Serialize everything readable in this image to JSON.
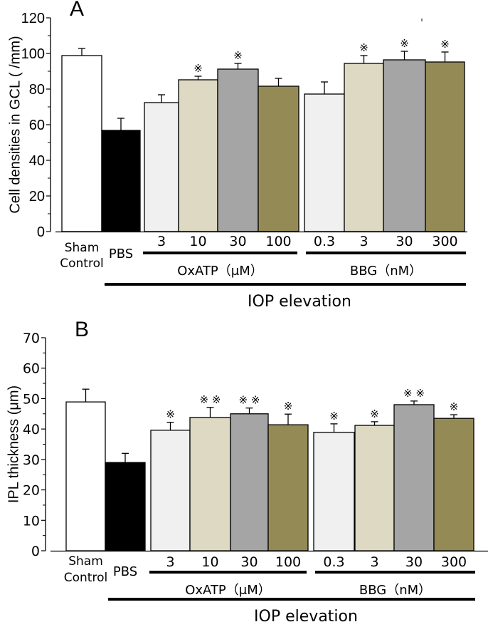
{
  "chart_data": [
    {
      "type": "bar",
      "panel_label": "A",
      "title": "",
      "xlabel": "",
      "ylabel": "Cell densities in GCL ( /mm)",
      "ylim": [
        0,
        120
      ],
      "yticks": [
        0,
        20,
        40,
        60,
        80,
        100,
        120
      ],
      "grid": false,
      "categories": [
        "Sham Control",
        "PBS",
        "OxATP 3",
        "OxATP 10",
        "OxATP 30",
        "OxATP 100",
        "BBG 0.3",
        "BBG 3",
        "BBG 30",
        "BBG 300"
      ],
      "tick_labels": [
        "3",
        "10",
        "30",
        "100",
        "0.3",
        "3",
        "30",
        "300"
      ],
      "values": [
        98.8,
        56.8,
        72.4,
        85.2,
        91.2,
        81.6,
        77.2,
        94.4,
        96.4,
        95.2
      ],
      "errors": [
        4.0,
        6.8,
        4.4,
        2.0,
        3.2,
        4.4,
        6.8,
        4.4,
        4.8,
        5.6
      ],
      "significance": [
        "",
        "",
        "",
        "*",
        "*",
        "",
        "",
        "*",
        "*",
        "*"
      ],
      "colors": [
        "#ffffff",
        "#000000",
        "#f0f0f0",
        "#ded9c3",
        "#a5a5a5",
        "#948a55",
        "#f0f0f0",
        "#ded9c3",
        "#a5a5a5",
        "#948a55"
      ]
    },
    {
      "type": "bar",
      "panel_label": "B",
      "title": "",
      "xlabel": "",
      "ylabel": "IPL thickness (μm)",
      "ylim": [
        0,
        70
      ],
      "yticks": [
        0,
        10,
        20,
        30,
        40,
        50,
        60,
        70
      ],
      "grid": false,
      "categories": [
        "Sham Control",
        "PBS",
        "OxATP 3",
        "OxATP 10",
        "OxATP 30",
        "OxATP 100",
        "BBG 0.3",
        "BBG 3",
        "BBG 30",
        "BBG 300"
      ],
      "tick_labels": [
        "3",
        "10",
        "30",
        "100",
        "0.3",
        "3",
        "30",
        "300"
      ],
      "values": [
        48.9,
        29.0,
        39.6,
        43.8,
        45.0,
        41.4,
        38.9,
        41.2,
        48.0,
        43.5
      ],
      "errors": [
        4.2,
        3.0,
        2.6,
        3.3,
        1.9,
        3.5,
        2.8,
        1.2,
        1.2,
        1.2
      ],
      "significance": [
        "",
        "",
        "*",
        "**",
        "**",
        "*",
        "*",
        "*",
        "**",
        "*"
      ],
      "colors": [
        "#ffffff",
        "#000000",
        "#f0f0f0",
        "#ded9c3",
        "#a5a5a5",
        "#948a55",
        "#f0f0f0",
        "#ded9c3",
        "#a5a5a5",
        "#948a55"
      ]
    }
  ],
  "labels": {
    "sham_line1": "Sham",
    "sham_line2": "Control",
    "pbs": "PBS",
    "oxatp_group": "OxATP（μM）",
    "bbg_group": "BBG（nM）",
    "iop": "IOP elevation"
  }
}
